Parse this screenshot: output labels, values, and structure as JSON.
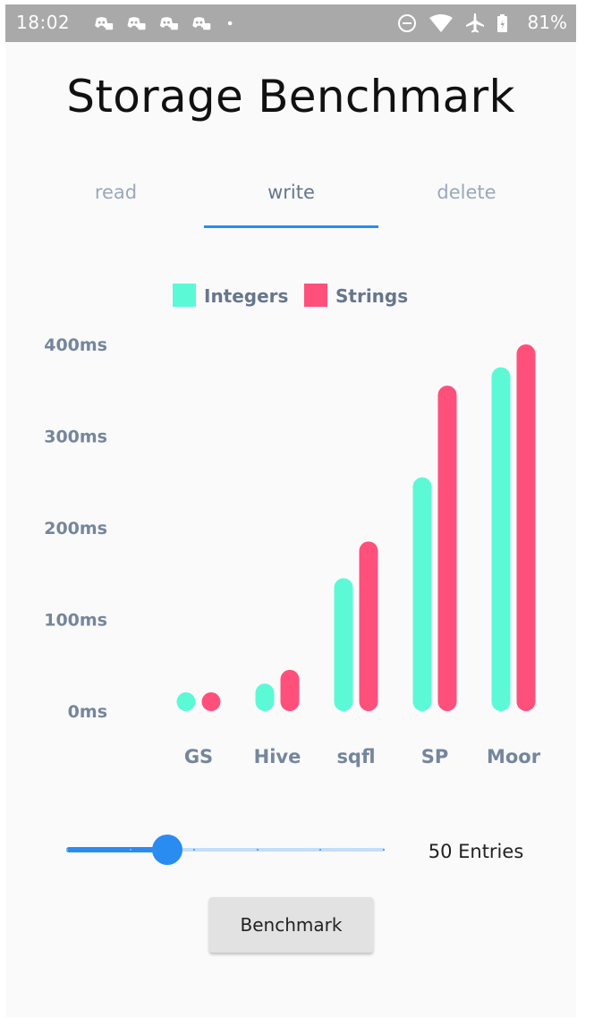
{
  "status_bar": {
    "time": "18:02",
    "battery": "81%",
    "notification_icons": [
      "discord-icon",
      "discord-icon",
      "discord-icon",
      "discord-icon",
      "dot-icon"
    ],
    "system_icons": [
      "do-not-disturb-icon",
      "wifi-icon",
      "airplane-icon",
      "battery-icon"
    ]
  },
  "header": {
    "title": "Storage Benchmark"
  },
  "tabs": [
    {
      "label": "read",
      "active": false
    },
    {
      "label": "write",
      "active": true
    },
    {
      "label": "delete",
      "active": false
    }
  ],
  "chart_data": {
    "type": "bar",
    "title": "",
    "xlabel": "",
    "ylabel": "",
    "categories": [
      "GS",
      "Hive",
      "sqfl",
      "SP",
      "Moor"
    ],
    "series": [
      {
        "name": "Integers",
        "color": "#5cf9d7",
        "values": [
          10,
          30,
          145,
          255,
          375
        ]
      },
      {
        "name": "Strings",
        "color": "#ff507c",
        "values": [
          10,
          45,
          185,
          355,
          400
        ]
      }
    ],
    "ylim": [
      0,
      400
    ],
    "yticks": [
      0,
      100,
      200,
      300,
      400
    ],
    "ytick_labels": [
      "0ms",
      "100ms",
      "200ms",
      "300ms",
      "400ms"
    ],
    "grid": false,
    "legend_position": "top-center"
  },
  "slider": {
    "value": 2,
    "min": 0,
    "max": 5
  },
  "entries_label": "50 Entries",
  "benchmark_button": {
    "label": "Benchmark"
  },
  "colors": {
    "accent": "#2a8cf1",
    "integers": "#5cf9d7",
    "strings": "#ff507c"
  }
}
